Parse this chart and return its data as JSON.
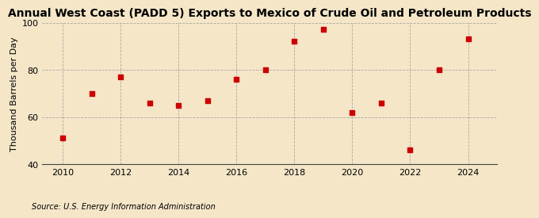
{
  "title": "Annual West Coast (PADD 5) Exports to Mexico of Crude Oil and Petroleum Products",
  "ylabel": "Thousand Barrels per Day",
  "source": "Source: U.S. Energy Information Administration",
  "years": [
    2010,
    2011,
    2012,
    2013,
    2014,
    2015,
    2016,
    2017,
    2018,
    2019,
    2020,
    2021,
    2022,
    2023,
    2024
  ],
  "values": [
    51,
    70,
    77,
    66,
    65,
    67,
    76,
    80,
    92,
    97,
    62,
    66,
    46,
    80,
    93
  ],
  "marker_color": "#cc0000",
  "marker": "s",
  "marker_size": 4,
  "ylim": [
    40,
    100
  ],
  "yticks": [
    40,
    60,
    80,
    100
  ],
  "xticks": [
    2010,
    2012,
    2014,
    2016,
    2018,
    2020,
    2022,
    2024
  ],
  "xlim": [
    2009.3,
    2025.0
  ],
  "bg_color": "#f5e6c8",
  "plot_bg_color": "#f5e6c8",
  "grid_color": "#999999",
  "title_fontsize": 10,
  "label_fontsize": 8,
  "tick_fontsize": 8,
  "source_fontsize": 7
}
